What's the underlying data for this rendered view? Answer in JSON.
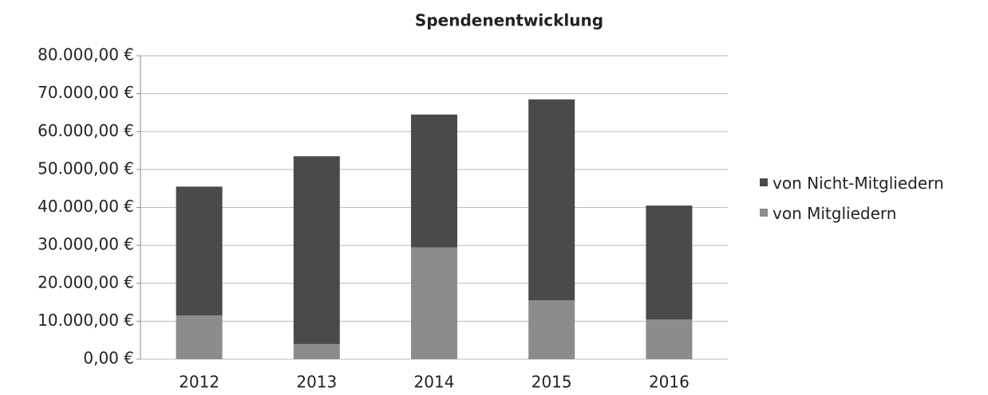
{
  "chart_data": {
    "type": "stacked_bar",
    "title": "Spendenentwicklung",
    "categories": [
      "2012",
      "2013",
      "2014",
      "2015",
      "2016"
    ],
    "series": [
      {
        "name": "von Mitgliedern",
        "color": "#8c8c8c",
        "values": [
          11500,
          4000,
          29500,
          15500,
          10500
        ]
      },
      {
        "name": "von Nicht-Mitgliedern",
        "color": "#4a4a4a",
        "values": [
          34000,
          49500,
          35000,
          53000,
          30000
        ]
      }
    ],
    "ylim": [
      0,
      80000
    ],
    "yticks": [
      {
        "value": 0,
        "label": "0,00 €"
      },
      {
        "value": 10000,
        "label": "10.000,00 €"
      },
      {
        "value": 20000,
        "label": "20.000,00 €"
      },
      {
        "value": 30000,
        "label": "30.000,00 €"
      },
      {
        "value": 40000,
        "label": "40.000,00 €"
      },
      {
        "value": 50000,
        "label": "50.000,00 €"
      },
      {
        "value": 60000,
        "label": "60.000,00 €"
      },
      {
        "value": 70000,
        "label": "70.000,00 €"
      },
      {
        "value": 80000,
        "label": "80.000,00 €"
      }
    ],
    "grid": true,
    "legend": "right"
  }
}
